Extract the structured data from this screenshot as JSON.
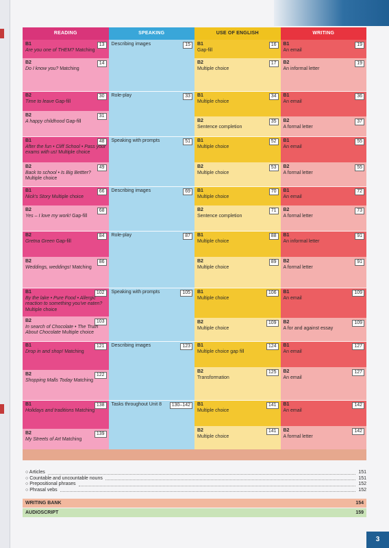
{
  "headers": {
    "reading": "READING",
    "speaking": "SPEAKING",
    "use_of_english": "USE OF ENGLISH",
    "writing": "WRITING"
  },
  "units": [
    {
      "reading": [
        {
          "level": "B1",
          "title": "Are you one of THEM?",
          "task": "Matching",
          "page": "13"
        },
        {
          "level": "B2",
          "title": "Do I know you?",
          "task": "Matching",
          "page": "14"
        }
      ],
      "speaking": {
        "title": "Describing images",
        "page": "15"
      },
      "use": [
        {
          "level": "B1",
          "task": "Gap-fill",
          "page": "16"
        },
        {
          "level": "B2",
          "task": "Multiple choice",
          "page": "17"
        }
      ],
      "writing": [
        {
          "level": "B1",
          "task": "An email",
          "page": "19"
        },
        {
          "level": "B2",
          "task": "An informal letter",
          "page": "19"
        }
      ]
    },
    {
      "reading": [
        {
          "level": "B2",
          "title": "Time to leave",
          "task": "Gap-fill",
          "page": "30"
        },
        {
          "level": "B2",
          "title": "A happy childhood",
          "task": "Gap-fill",
          "page": "31"
        }
      ],
      "speaking": {
        "title": "Role-play",
        "page": "33"
      },
      "use": [
        {
          "level": "B1",
          "task": "Multiple choice",
          "page": "34"
        },
        {
          "level": "B2",
          "task": "Sentence completion",
          "page": "35"
        }
      ],
      "writing": [
        {
          "level": "B1",
          "task": "An email",
          "page": "36"
        },
        {
          "level": "B2",
          "task": "A formal letter",
          "page": "37"
        }
      ]
    },
    {
      "reading": [
        {
          "level": "B1",
          "title": "After the fun • Cliff School • Pass your exams with us!",
          "task": "Multiple choice",
          "page": "48"
        },
        {
          "level": "B2",
          "title": "Back to school • Is Big Bettter?",
          "task": "Multiple choice",
          "page": "49"
        }
      ],
      "speaking": {
        "title": "Speaking with prompts",
        "page": "51"
      },
      "use": [
        {
          "level": "B1",
          "task": "Multiple choice",
          "page": "52"
        },
        {
          "level": "B2",
          "task": "Multiple choice",
          "page": "53"
        }
      ],
      "writing": [
        {
          "level": "B1",
          "task": "An email",
          "page": "55"
        },
        {
          "level": "B2",
          "task": "A formal letter",
          "page": "55"
        }
      ]
    },
    {
      "reading": [
        {
          "level": "B1",
          "title": "Nick's Story",
          "task": "Multiple choice",
          "page": "66"
        },
        {
          "level": "B2",
          "title": "Yes – I love my work!",
          "task": "Gap-fill",
          "page": "68"
        }
      ],
      "speaking": {
        "title": "Describing images",
        "page": "69"
      },
      "use": [
        {
          "level": "B1",
          "task": "Multiple choice",
          "page": "70"
        },
        {
          "level": "B2",
          "task": "Sentence completion",
          "page": "71"
        }
      ],
      "writing": [
        {
          "level": "B1",
          "task": "An email",
          "page": "72"
        },
        {
          "level": "B2",
          "task": "A formal letter",
          "page": "73"
        }
      ]
    },
    {
      "reading": [
        {
          "level": "B2",
          "title": "Gretna Green",
          "task": "Gap-fill",
          "page": "84"
        },
        {
          "level": "B2",
          "title": "Weddings, weddings!",
          "task": "Matching",
          "page": "86"
        }
      ],
      "speaking": {
        "title": "Role-play",
        "page": "87"
      },
      "use": [
        {
          "level": "B1",
          "task": "Multiple choice",
          "page": "88"
        },
        {
          "level": "B2",
          "task": "Multiple choice",
          "page": "89"
        }
      ],
      "writing": [
        {
          "level": "B1",
          "task": "An informal letter",
          "page": "91"
        },
        {
          "level": "B2",
          "task": "A formal letter",
          "page": "91"
        }
      ]
    },
    {
      "reading": [
        {
          "level": "B1",
          "title": "By the lake • Pure Food • Allergic reaction to something you've eaten?",
          "task": "Multiple choice",
          "page": "102"
        },
        {
          "level": "B2",
          "title": "In search of Chocolate • The Truth About Chocolate",
          "task": "Multiple choice",
          "page": "103"
        }
      ],
      "speaking": {
        "title": "Speaking with prompts",
        "page": "105"
      },
      "use": [
        {
          "level": "B1",
          "task": "Multiple choice",
          "page": "106"
        },
        {
          "level": "B2",
          "task": "Multiple choice",
          "page": "109"
        }
      ],
      "writing": [
        {
          "level": "B1",
          "task": "An email",
          "page": "109"
        },
        {
          "level": "B2",
          "task": "A for and against essay",
          "page": "109"
        }
      ]
    },
    {
      "reading": [
        {
          "level": "B1",
          "title": "Drop in and shop!",
          "task": "Matching",
          "page": "121"
        },
        {
          "level": "B2",
          "title": "Shopping Malls Today",
          "task": "Matching",
          "page": "122"
        }
      ],
      "speaking": {
        "title": "Describing images",
        "page": "123"
      },
      "use": [
        {
          "level": "B1",
          "task": "Multiple choice gap fill",
          "page": "124"
        },
        {
          "level": "B2",
          "task": "Transformation",
          "page": "125"
        }
      ],
      "writing": [
        {
          "level": "B1",
          "task": "An email",
          "page": "127"
        },
        {
          "level": "B2",
          "task": "An email",
          "page": "127"
        }
      ]
    },
    {
      "reading": [
        {
          "level": "B1",
          "title": "Holidays and traditions",
          "task": "Matching",
          "page": "138"
        },
        {
          "level": "B2",
          "title": "My Streets of Art",
          "task": "Matching",
          "page": "139"
        }
      ],
      "speaking": {
        "title": "Tasks throughout Unit 8",
        "page": "130–142"
      },
      "use": [
        {
          "level": "B1",
          "task": "Multiple choice",
          "page": "141"
        },
        {
          "level": "B2",
          "task": "Multiple choice",
          "page": "141"
        }
      ],
      "writing": [
        {
          "level": "B1",
          "task": "An email",
          "page": "142"
        },
        {
          "level": "B2",
          "task": "A formal letter",
          "page": "142"
        }
      ]
    }
  ],
  "grammar_refs": [
    {
      "label": "Articles",
      "page": "151"
    },
    {
      "label": "Countable and uncountable nouns",
      "page": "151"
    },
    {
      "label": "Prepositional phrases",
      "page": "152"
    },
    {
      "label": "Phrasal vebs",
      "page": "152"
    }
  ],
  "writing_bank": {
    "label": "WRITING BANK",
    "page": "154"
  },
  "audioscript": {
    "label": "AUDIOSCRIPT",
    "page": "159"
  },
  "page_number": "3",
  "colors": {
    "reading": "#d9357a",
    "speaking": "#39a6d9",
    "use": "#f0c21e",
    "writing": "#e8343f"
  }
}
